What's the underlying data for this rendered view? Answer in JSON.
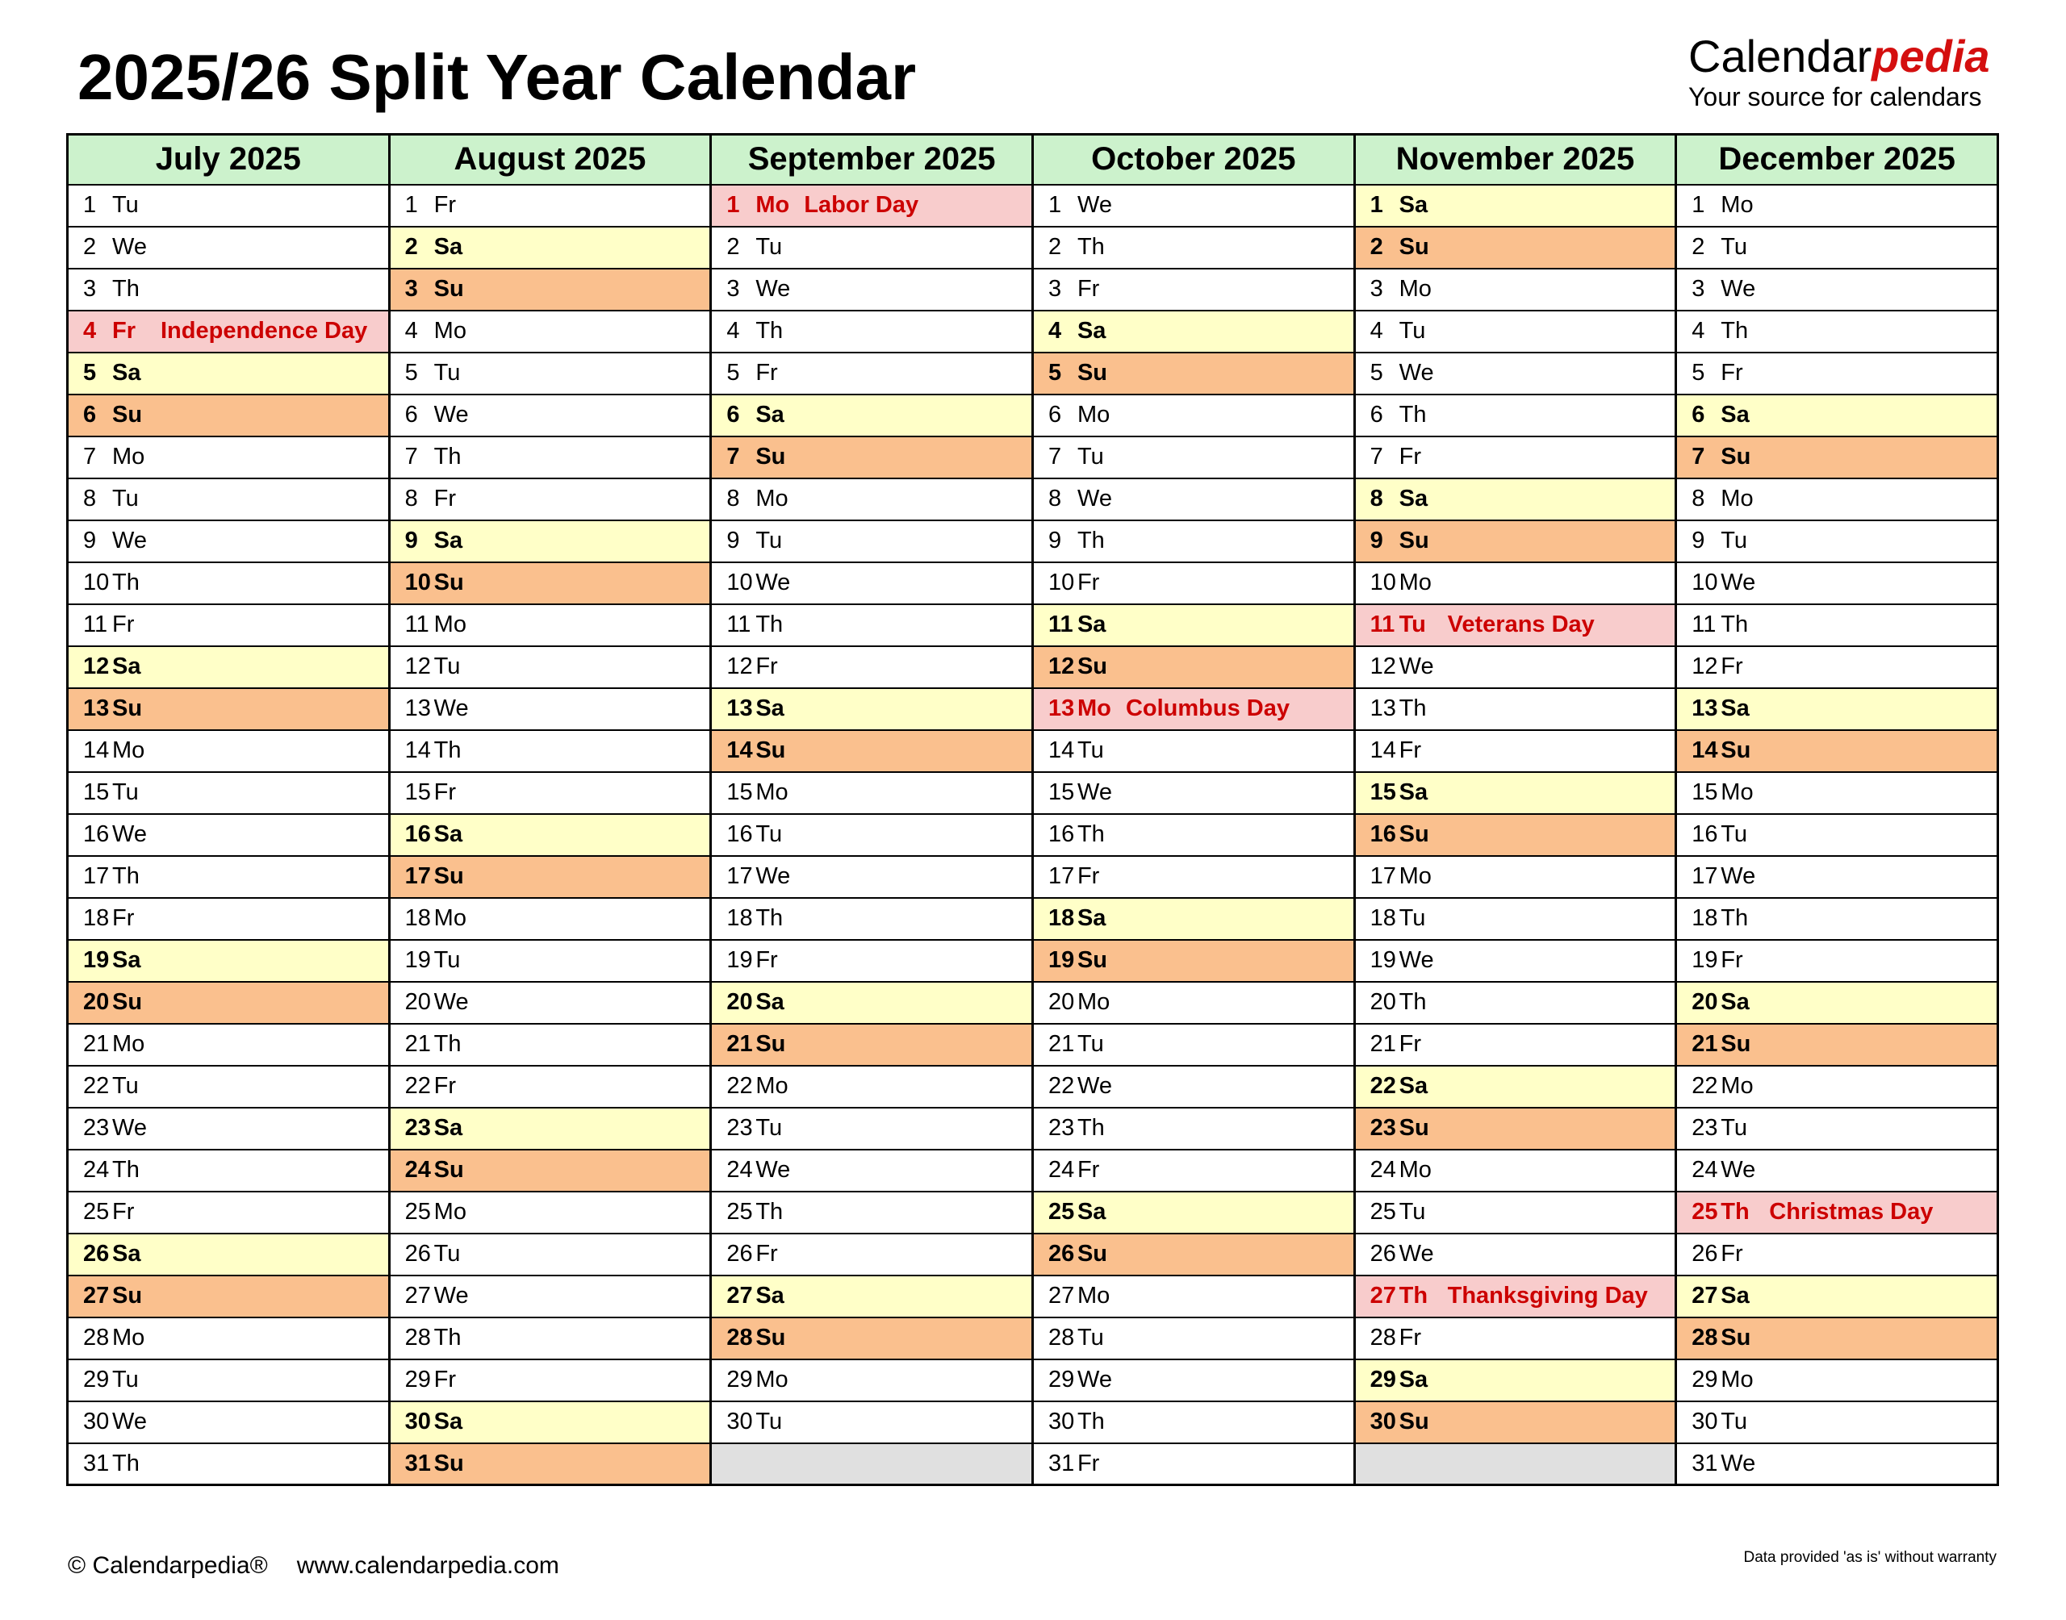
{
  "header": {
    "title": "2025/26 Split Year Calendar",
    "logo_black": "Calendar",
    "logo_red": "pedia",
    "tagline": "Your source for calendars"
  },
  "colors": {
    "month_header_green": "#ccf2cc",
    "saturday_yellow": "#ffffc8",
    "sunday_orange": "#fac08e",
    "holiday_pink": "#f8cccc",
    "holiday_red": "#cc0000",
    "empty_gray": "#e0e0e0",
    "brand_red": "#d40f0f"
  },
  "months": [
    {
      "name": "July 2025",
      "days": [
        [
          1,
          "Tu",
          "wd"
        ],
        [
          2,
          "We",
          "wd"
        ],
        [
          3,
          "Th",
          "wd"
        ],
        [
          4,
          "Fr",
          "hol",
          "Independence Day"
        ],
        [
          5,
          "Sa",
          "sa"
        ],
        [
          6,
          "Su",
          "su"
        ],
        [
          7,
          "Mo",
          "wd"
        ],
        [
          8,
          "Tu",
          "wd"
        ],
        [
          9,
          "We",
          "wd"
        ],
        [
          10,
          "Th",
          "wd"
        ],
        [
          11,
          "Fr",
          "wd"
        ],
        [
          12,
          "Sa",
          "sa"
        ],
        [
          13,
          "Su",
          "su"
        ],
        [
          14,
          "Mo",
          "wd"
        ],
        [
          15,
          "Tu",
          "wd"
        ],
        [
          16,
          "We",
          "wd"
        ],
        [
          17,
          "Th",
          "wd"
        ],
        [
          18,
          "Fr",
          "wd"
        ],
        [
          19,
          "Sa",
          "sa"
        ],
        [
          20,
          "Su",
          "su"
        ],
        [
          21,
          "Mo",
          "wd"
        ],
        [
          22,
          "Tu",
          "wd"
        ],
        [
          23,
          "We",
          "wd"
        ],
        [
          24,
          "Th",
          "wd"
        ],
        [
          25,
          "Fr",
          "wd"
        ],
        [
          26,
          "Sa",
          "sa"
        ],
        [
          27,
          "Su",
          "su"
        ],
        [
          28,
          "Mo",
          "wd"
        ],
        [
          29,
          "Tu",
          "wd"
        ],
        [
          30,
          "We",
          "wd"
        ],
        [
          31,
          "Th",
          "wd"
        ]
      ]
    },
    {
      "name": "August 2025",
      "days": [
        [
          1,
          "Fr",
          "wd"
        ],
        [
          2,
          "Sa",
          "sa"
        ],
        [
          3,
          "Su",
          "su"
        ],
        [
          4,
          "Mo",
          "wd"
        ],
        [
          5,
          "Tu",
          "wd"
        ],
        [
          6,
          "We",
          "wd"
        ],
        [
          7,
          "Th",
          "wd"
        ],
        [
          8,
          "Fr",
          "wd"
        ],
        [
          9,
          "Sa",
          "sa"
        ],
        [
          10,
          "Su",
          "su"
        ],
        [
          11,
          "Mo",
          "wd"
        ],
        [
          12,
          "Tu",
          "wd"
        ],
        [
          13,
          "We",
          "wd"
        ],
        [
          14,
          "Th",
          "wd"
        ],
        [
          15,
          "Fr",
          "wd"
        ],
        [
          16,
          "Sa",
          "sa"
        ],
        [
          17,
          "Su",
          "su"
        ],
        [
          18,
          "Mo",
          "wd"
        ],
        [
          19,
          "Tu",
          "wd"
        ],
        [
          20,
          "We",
          "wd"
        ],
        [
          21,
          "Th",
          "wd"
        ],
        [
          22,
          "Fr",
          "wd"
        ],
        [
          23,
          "Sa",
          "sa"
        ],
        [
          24,
          "Su",
          "su"
        ],
        [
          25,
          "Mo",
          "wd"
        ],
        [
          26,
          "Tu",
          "wd"
        ],
        [
          27,
          "We",
          "wd"
        ],
        [
          28,
          "Th",
          "wd"
        ],
        [
          29,
          "Fr",
          "wd"
        ],
        [
          30,
          "Sa",
          "sa"
        ],
        [
          31,
          "Su",
          "su"
        ]
      ]
    },
    {
      "name": "September 2025",
      "days": [
        [
          1,
          "Mo",
          "hol",
          "Labor Day"
        ],
        [
          2,
          "Tu",
          "wd"
        ],
        [
          3,
          "We",
          "wd"
        ],
        [
          4,
          "Th",
          "wd"
        ],
        [
          5,
          "Fr",
          "wd"
        ],
        [
          6,
          "Sa",
          "sa"
        ],
        [
          7,
          "Su",
          "su"
        ],
        [
          8,
          "Mo",
          "wd"
        ],
        [
          9,
          "Tu",
          "wd"
        ],
        [
          10,
          "We",
          "wd"
        ],
        [
          11,
          "Th",
          "wd"
        ],
        [
          12,
          "Fr",
          "wd"
        ],
        [
          13,
          "Sa",
          "sa"
        ],
        [
          14,
          "Su",
          "su"
        ],
        [
          15,
          "Mo",
          "wd"
        ],
        [
          16,
          "Tu",
          "wd"
        ],
        [
          17,
          "We",
          "wd"
        ],
        [
          18,
          "Th",
          "wd"
        ],
        [
          19,
          "Fr",
          "wd"
        ],
        [
          20,
          "Sa",
          "sa"
        ],
        [
          21,
          "Su",
          "su"
        ],
        [
          22,
          "Mo",
          "wd"
        ],
        [
          23,
          "Tu",
          "wd"
        ],
        [
          24,
          "We",
          "wd"
        ],
        [
          25,
          "Th",
          "wd"
        ],
        [
          26,
          "Fr",
          "wd"
        ],
        [
          27,
          "Sa",
          "sa"
        ],
        [
          28,
          "Su",
          "su"
        ],
        [
          29,
          "Mo",
          "wd"
        ],
        [
          30,
          "Tu",
          "wd"
        ]
      ]
    },
    {
      "name": "October 2025",
      "days": [
        [
          1,
          "We",
          "wd"
        ],
        [
          2,
          "Th",
          "wd"
        ],
        [
          3,
          "Fr",
          "wd"
        ],
        [
          4,
          "Sa",
          "sa"
        ],
        [
          5,
          "Su",
          "su"
        ],
        [
          6,
          "Mo",
          "wd"
        ],
        [
          7,
          "Tu",
          "wd"
        ],
        [
          8,
          "We",
          "wd"
        ],
        [
          9,
          "Th",
          "wd"
        ],
        [
          10,
          "Fr",
          "wd"
        ],
        [
          11,
          "Sa",
          "sa"
        ],
        [
          12,
          "Su",
          "su"
        ],
        [
          13,
          "Mo",
          "hol",
          "Columbus Day"
        ],
        [
          14,
          "Tu",
          "wd"
        ],
        [
          15,
          "We",
          "wd"
        ],
        [
          16,
          "Th",
          "wd"
        ],
        [
          17,
          "Fr",
          "wd"
        ],
        [
          18,
          "Sa",
          "sa"
        ],
        [
          19,
          "Su",
          "su"
        ],
        [
          20,
          "Mo",
          "wd"
        ],
        [
          21,
          "Tu",
          "wd"
        ],
        [
          22,
          "We",
          "wd"
        ],
        [
          23,
          "Th",
          "wd"
        ],
        [
          24,
          "Fr",
          "wd"
        ],
        [
          25,
          "Sa",
          "sa"
        ],
        [
          26,
          "Su",
          "su"
        ],
        [
          27,
          "Mo",
          "wd"
        ],
        [
          28,
          "Tu",
          "wd"
        ],
        [
          29,
          "We",
          "wd"
        ],
        [
          30,
          "Th",
          "wd"
        ],
        [
          31,
          "Fr",
          "wd"
        ]
      ]
    },
    {
      "name": "November 2025",
      "days": [
        [
          1,
          "Sa",
          "sa"
        ],
        [
          2,
          "Su",
          "su"
        ],
        [
          3,
          "Mo",
          "wd"
        ],
        [
          4,
          "Tu",
          "wd"
        ],
        [
          5,
          "We",
          "wd"
        ],
        [
          6,
          "Th",
          "wd"
        ],
        [
          7,
          "Fr",
          "wd"
        ],
        [
          8,
          "Sa",
          "sa"
        ],
        [
          9,
          "Su",
          "su"
        ],
        [
          10,
          "Mo",
          "wd"
        ],
        [
          11,
          "Tu",
          "hol",
          "Veterans Day"
        ],
        [
          12,
          "We",
          "wd"
        ],
        [
          13,
          "Th",
          "wd"
        ],
        [
          14,
          "Fr",
          "wd"
        ],
        [
          15,
          "Sa",
          "sa"
        ],
        [
          16,
          "Su",
          "su"
        ],
        [
          17,
          "Mo",
          "wd"
        ],
        [
          18,
          "Tu",
          "wd"
        ],
        [
          19,
          "We",
          "wd"
        ],
        [
          20,
          "Th",
          "wd"
        ],
        [
          21,
          "Fr",
          "wd"
        ],
        [
          22,
          "Sa",
          "sa"
        ],
        [
          23,
          "Su",
          "su"
        ],
        [
          24,
          "Mo",
          "wd"
        ],
        [
          25,
          "Tu",
          "wd"
        ],
        [
          26,
          "We",
          "wd"
        ],
        [
          27,
          "Th",
          "hol",
          "Thanksgiving Day"
        ],
        [
          28,
          "Fr",
          "wd"
        ],
        [
          29,
          "Sa",
          "sa"
        ],
        [
          30,
          "Su",
          "su"
        ]
      ]
    },
    {
      "name": "December 2025",
      "days": [
        [
          1,
          "Mo",
          "wd"
        ],
        [
          2,
          "Tu",
          "wd"
        ],
        [
          3,
          "We",
          "wd"
        ],
        [
          4,
          "Th",
          "wd"
        ],
        [
          5,
          "Fr",
          "wd"
        ],
        [
          6,
          "Sa",
          "sa"
        ],
        [
          7,
          "Su",
          "su"
        ],
        [
          8,
          "Mo",
          "wd"
        ],
        [
          9,
          "Tu",
          "wd"
        ],
        [
          10,
          "We",
          "wd"
        ],
        [
          11,
          "Th",
          "wd"
        ],
        [
          12,
          "Fr",
          "wd"
        ],
        [
          13,
          "Sa",
          "sa"
        ],
        [
          14,
          "Su",
          "su"
        ],
        [
          15,
          "Mo",
          "wd"
        ],
        [
          16,
          "Tu",
          "wd"
        ],
        [
          17,
          "We",
          "wd"
        ],
        [
          18,
          "Th",
          "wd"
        ],
        [
          19,
          "Fr",
          "wd"
        ],
        [
          20,
          "Sa",
          "sa"
        ],
        [
          21,
          "Su",
          "su"
        ],
        [
          22,
          "Mo",
          "wd"
        ],
        [
          23,
          "Tu",
          "wd"
        ],
        [
          24,
          "We",
          "wd"
        ],
        [
          25,
          "Th",
          "hol",
          "Christmas Day"
        ],
        [
          26,
          "Fr",
          "wd"
        ],
        [
          27,
          "Sa",
          "sa"
        ],
        [
          28,
          "Su",
          "su"
        ],
        [
          29,
          "Mo",
          "wd"
        ],
        [
          30,
          "Tu",
          "wd"
        ],
        [
          31,
          "We",
          "wd"
        ]
      ]
    }
  ],
  "footer": {
    "copyright": "© Calendarpedia®",
    "url": "www.calendarpedia.com",
    "disclaimer": "Data provided 'as is' without warranty"
  }
}
